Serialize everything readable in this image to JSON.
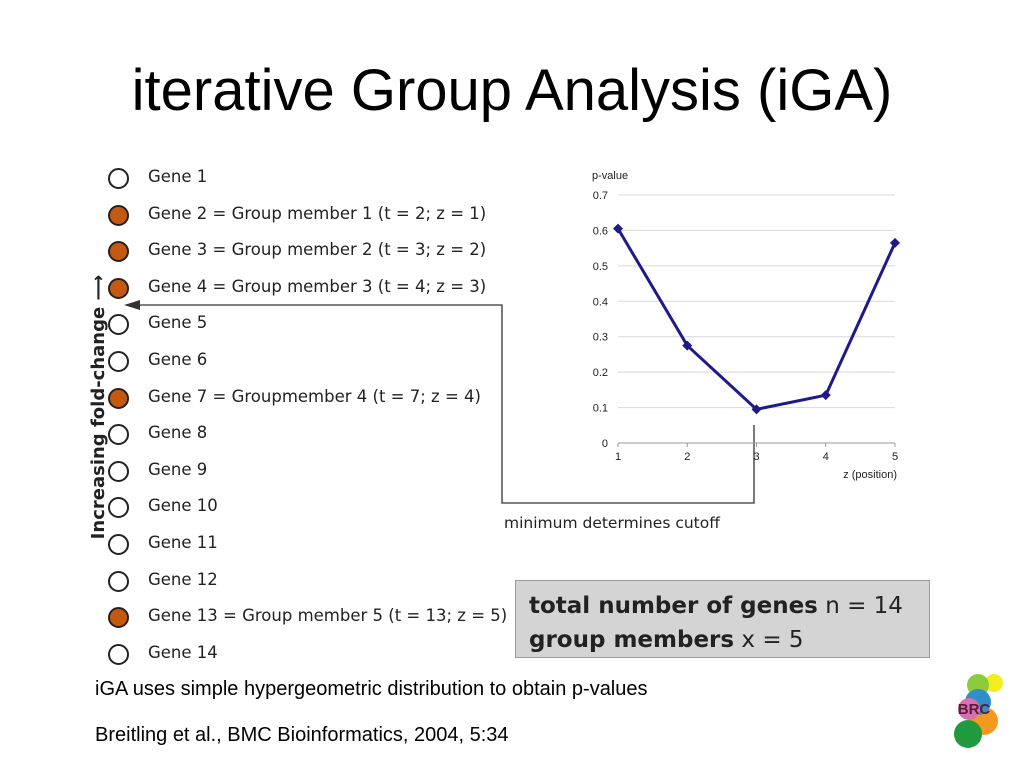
{
  "slide": {
    "title": "iterative Group Analysis (iGA)",
    "caption1": "iGA uses simple hypergeometric distribution to obtain p-values",
    "caption2": "Breitling et al., BMC Bioinformatics, 2004, 5:34"
  },
  "gene_list": {
    "axis_label": "Increasing fold-change",
    "member_color": "#c45a12",
    "genes": [
      {
        "label": "Gene 1",
        "member": false
      },
      {
        "label": "Gene 2 = Group member 1 (t = 2; z = 1)",
        "member": true
      },
      {
        "label": "Gene 3 = Group member 2 (t = 3; z = 2)",
        "member": true
      },
      {
        "label": "Gene 4 = Group member 3 (t = 4; z = 3)",
        "member": true
      },
      {
        "label": "Gene 5",
        "member": false
      },
      {
        "label": "Gene 6",
        "member": false
      },
      {
        "label": "Gene 7 = Groupmember 4 (t = 7; z = 4)",
        "member": true
      },
      {
        "label": "Gene 8",
        "member": false
      },
      {
        "label": "Gene 9",
        "member": false
      },
      {
        "label": "Gene 10",
        "member": false
      },
      {
        "label": "Gene 11",
        "member": false
      },
      {
        "label": "Gene 12",
        "member": false
      },
      {
        "label": "Gene 13 = Group member 5 (t = 13; z = 5)",
        "member": true
      },
      {
        "label": "Gene 14",
        "member": false
      }
    ]
  },
  "annotation": {
    "cutoff_label": "minimum determines cutoff"
  },
  "summary": {
    "line1_bold": "total number of genes",
    "line1_value": "n = 14",
    "line2_bold": "group members",
    "line2_value": "x = 5"
  },
  "logo": {
    "text": "BRC"
  },
  "chart_data": {
    "type": "line",
    "title": "",
    "ylabel": "p-value",
    "xlabel": "z (position)",
    "x": [
      1,
      2,
      3,
      4,
      5
    ],
    "y": [
      0.605,
      0.275,
      0.095,
      0.135,
      0.565
    ],
    "xticks": [
      "1",
      "2",
      "3",
      "4",
      "5"
    ],
    "yticks": [
      "0",
      "0.1",
      "0.2",
      "0.3",
      "0.4",
      "0.5",
      "0.6",
      "0.7"
    ],
    "ylim": [
      0,
      0.7
    ],
    "grid": "horizontal",
    "line_color": "#1f1a8a"
  }
}
